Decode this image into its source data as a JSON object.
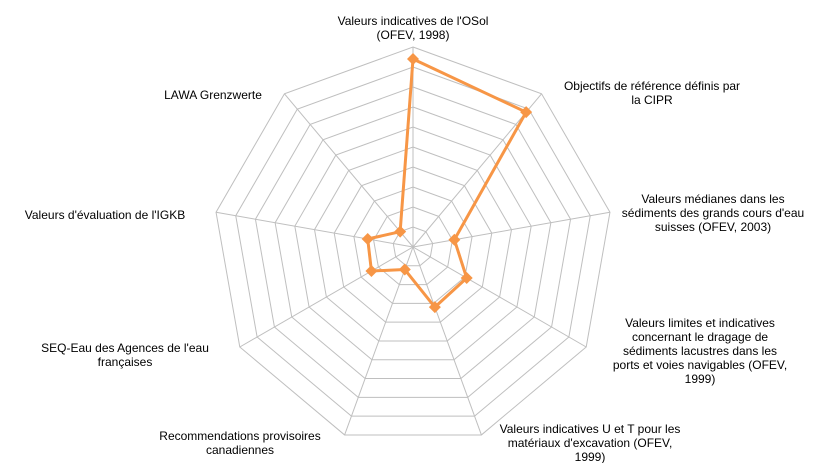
{
  "chart_data": {
    "type": "radar",
    "categories": [
      [
        "Valeurs indicatives de l'OSol",
        "(OFEV, 1998)"
      ],
      [
        "Objectifs de référence définis par",
        "la CIPR"
      ],
      [
        "Valeurs médianes dans les",
        "sédiments des grands cours d'eau",
        "suisses (OFEV, 2003)"
      ],
      [
        "Valeurs limites et indicatives",
        "concernant le dragage de",
        "sédiments lacustres dans les",
        "ports et voies navigables (OFEV,",
        "1999)"
      ],
      [
        "Valeurs indicatives U et T pour les",
        "matériaux d'excavation (OFEV,",
        "1999)"
      ],
      [
        "Recommendations provisoires",
        "canadiennes"
      ],
      [
        "SEQ-Eau des Agences de l'eau",
        "françaises"
      ],
      [
        "Valeurs d'évaluation de l'IGKB"
      ],
      [
        "LAWA Grenzwerte"
      ]
    ],
    "values": [
      9.4,
      8.8,
      2.1,
      3.1,
      3.2,
      1.2,
      2.4,
      2.3,
      1.0
    ],
    "color": "#f79646",
    "ylim": [
      0,
      10
    ],
    "yticks": [
      1,
      2,
      3,
      4,
      5,
      6,
      7,
      8,
      9,
      10
    ],
    "grid": true
  }
}
